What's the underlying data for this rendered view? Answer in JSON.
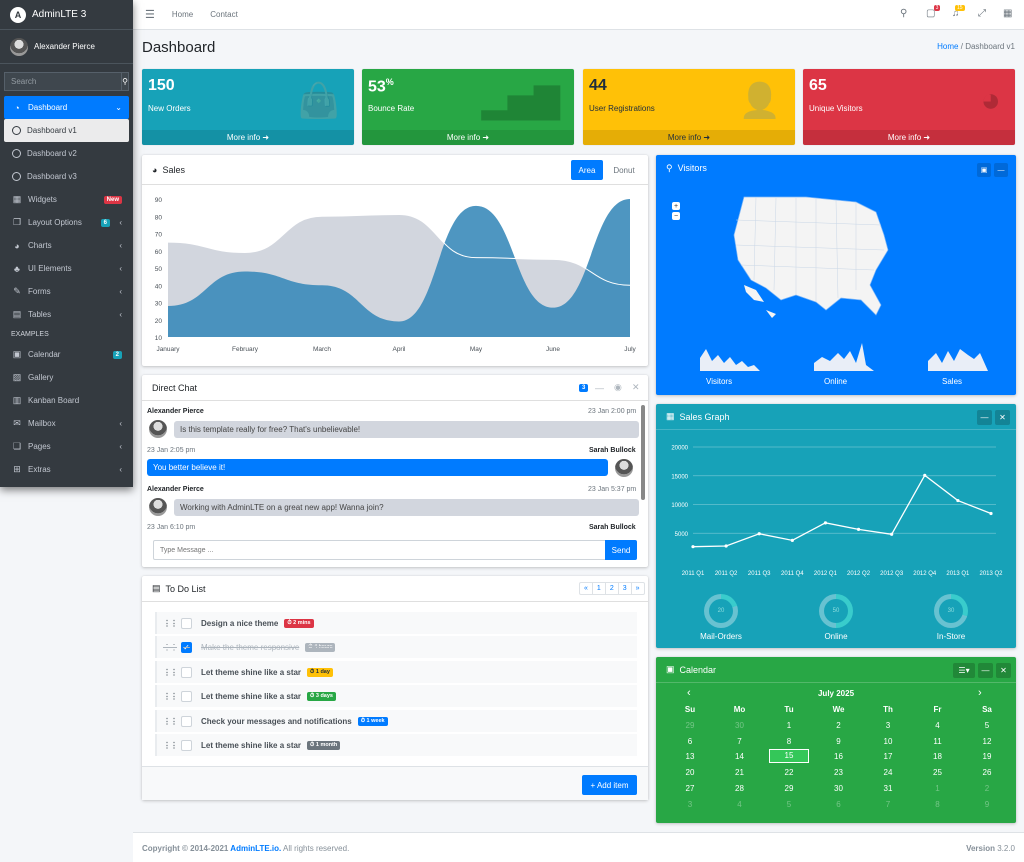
{
  "sidebar": {
    "brand": "AdminLTE 3",
    "brand_logo": "A",
    "user": "Alexander Pierce",
    "search_placeholder": "Search",
    "items": [
      {
        "label": "Dashboard",
        "icon": "tachometer-icon"
      },
      {
        "label": "Dashboard v1"
      },
      {
        "label": "Dashboard v2"
      },
      {
        "label": "Dashboard v3"
      },
      {
        "label": "Widgets",
        "badge": "New"
      },
      {
        "label": "Layout Options",
        "badge": "6"
      },
      {
        "label": "Charts"
      },
      {
        "label": "UI Elements"
      },
      {
        "label": "Forms"
      },
      {
        "label": "Tables"
      }
    ],
    "header_examples": "EXAMPLES",
    "examples": [
      {
        "label": "Calendar",
        "badge": "2"
      },
      {
        "label": "Gallery"
      },
      {
        "label": "Kanban Board"
      },
      {
        "label": "Mailbox"
      },
      {
        "label": "Pages"
      },
      {
        "label": "Extras"
      }
    ]
  },
  "topbar": {
    "home": "Home",
    "contact": "Contact",
    "messages_count": "3",
    "notifications_count": "15"
  },
  "page": {
    "title": "Dashboard",
    "breadcrumb_home": "Home",
    "breadcrumb_sep": "/",
    "breadcrumb_current": "Dashboard v1"
  },
  "stat_boxes": [
    {
      "value": "150",
      "sup": "",
      "label": "New Orders",
      "more": "More info ➜",
      "color": "#17a2b8"
    },
    {
      "value": "53",
      "sup": "%",
      "label": "Bounce Rate",
      "more": "More info ➜",
      "color": "#28a745"
    },
    {
      "value": "44",
      "sup": "",
      "label": "User Registrations",
      "more": "More info ➜",
      "color": "#ffc107"
    },
    {
      "value": "65",
      "sup": "",
      "label": "Unique Visitors",
      "more": "More info ➜",
      "color": "#dc3545"
    }
  ],
  "sales": {
    "title": "Sales",
    "tab_area": "Area",
    "tab_donut": "Donut"
  },
  "chart_data": [
    {
      "type": "area",
      "title": "Sales",
      "categories": [
        "January",
        "February",
        "March",
        "April",
        "May",
        "June",
        "July"
      ],
      "ylim": [
        10,
        90
      ],
      "yticks": [
        "90",
        "80",
        "70",
        "60",
        "50",
        "40",
        "30",
        "20",
        "10"
      ],
      "series": [
        {
          "values": [
            28,
            48,
            40,
            19,
            86,
            27,
            90
          ],
          "color": "#3b8bba"
        },
        {
          "values": [
            65,
            59,
            80,
            81,
            56,
            55,
            40
          ],
          "color": "#d2d6de"
        }
      ]
    },
    {
      "type": "line",
      "title": "Sales Graph",
      "categories": [
        "2011 Q1",
        "2011 Q2",
        "2011 Q3",
        "2011 Q4",
        "2012 Q1",
        "2012 Q2",
        "2012 Q3",
        "2012 Q4",
        "2013 Q1",
        "2013 Q2"
      ],
      "yticks": [
        "20000",
        "15000",
        "10000",
        "5000"
      ],
      "ylim": [
        0,
        20000
      ],
      "series": [
        {
          "values": [
            2666,
            2778,
            4912,
            3767,
            6810,
            5670,
            4820,
            15073,
            10687,
            8432
          ]
        }
      ]
    }
  ],
  "chat": {
    "title": "Direct Chat",
    "badge": "3",
    "messages": [
      {
        "name": "Alexander Pierce",
        "time": "23 Jan 2:00 pm",
        "text": "Is this template really for free? That's unbelievable!"
      },
      {
        "name": "Sarah Bullock",
        "time": "23 Jan 2:05 pm",
        "text": "You better believe it!"
      },
      {
        "name": "Alexander Pierce",
        "time": "23 Jan 5:37 pm",
        "text": "Working with AdminLTE on a great new app! Wanna join?"
      },
      {
        "name": "Sarah Bullock",
        "time": "23 Jan 6:10 pm"
      }
    ],
    "placeholder": "Type Message ...",
    "send": "Send"
  },
  "todo": {
    "title": "To Do List",
    "pages": [
      "«",
      "1",
      "2",
      "3",
      "»"
    ],
    "items": [
      {
        "text": "Design a nice theme",
        "badge": "⏱ 2 mins",
        "color": "#dc3545",
        "done": false
      },
      {
        "text": "Make the theme responsive",
        "badge": "⏱ 4 hours",
        "color": "#adb5bd",
        "done": true
      },
      {
        "text": "Let theme shine like a star",
        "badge": "⏱ 1 day",
        "color": "#ffc107",
        "done": false
      },
      {
        "text": "Let theme shine like a star",
        "badge": "⏱ 3 days",
        "color": "#28a745",
        "done": false
      },
      {
        "text": "Check your messages and notifications",
        "badge": "⏱ 1 week",
        "color": "#007bff",
        "done": false
      },
      {
        "text": "Let theme shine like a star",
        "badge": "⏱ 1 month",
        "color": "#6c757d",
        "done": false
      }
    ],
    "add": "+ Add item"
  },
  "visitors": {
    "title": "Visitors",
    "labels": [
      "Visitors",
      "Online",
      "Sales"
    ]
  },
  "sales_graph": {
    "title": "Sales Graph",
    "knobs": [
      {
        "label": "Mail-Orders",
        "value": "20"
      },
      {
        "label": "Online",
        "value": "50"
      },
      {
        "label": "In-Store",
        "value": "30"
      }
    ]
  },
  "calendar": {
    "title": "Calendar",
    "month": "July 2025",
    "weekdays": [
      "Su",
      "Mo",
      "Tu",
      "We",
      "Th",
      "Fr",
      "Sa"
    ],
    "weeks": [
      [
        "29",
        "30",
        "1",
        "2",
        "3",
        "4",
        "5"
      ],
      [
        "6",
        "7",
        "8",
        "9",
        "10",
        "11",
        "12"
      ],
      [
        "13",
        "14",
        "15",
        "16",
        "17",
        "18",
        "19"
      ],
      [
        "20",
        "21",
        "22",
        "23",
        "24",
        "25",
        "26"
      ],
      [
        "27",
        "28",
        "29",
        "30",
        "31",
        "1",
        "2"
      ],
      [
        "3",
        "4",
        "5",
        "6",
        "7",
        "8",
        "9"
      ]
    ],
    "today": "15"
  },
  "footer": {
    "copyright": "Copyright © 2014-2021 ",
    "link": "AdminLTE.io.",
    "rights": " All rights reserved.",
    "version_label": "Version",
    "version": " 3.2.0"
  }
}
